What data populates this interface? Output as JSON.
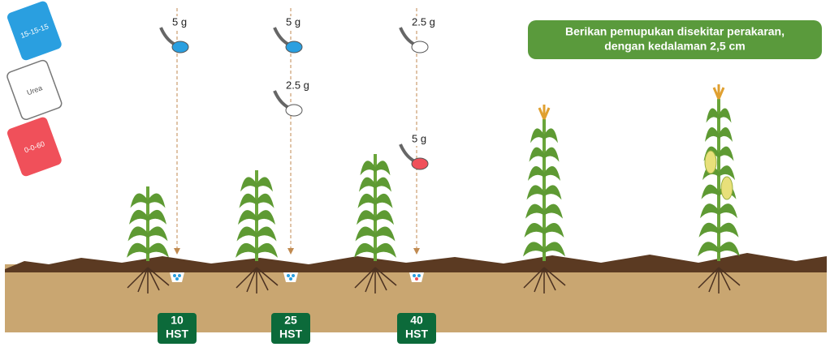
{
  "fertilizers": [
    {
      "label": "15-15-15"
    },
    {
      "label": "Urea"
    },
    {
      "label": "0-0-60"
    }
  ],
  "applications": [
    {
      "doses": [
        {
          "amount": "5 g"
        }
      ],
      "day": "10",
      "unit": "HST"
    },
    {
      "doses": [
        {
          "amount": "5 g"
        },
        {
          "amount": "2.5 g"
        }
      ],
      "day": "25",
      "unit": "HST"
    },
    {
      "doses": [
        {
          "amount": "2.5 g"
        },
        {
          "amount": "5 g"
        }
      ],
      "day": "40",
      "unit": "HST"
    }
  ],
  "note": {
    "lines": [
      "Berikan pemupukan disekitar perakaran,",
      "dengan kedalaman 2,5 cm"
    ]
  }
}
